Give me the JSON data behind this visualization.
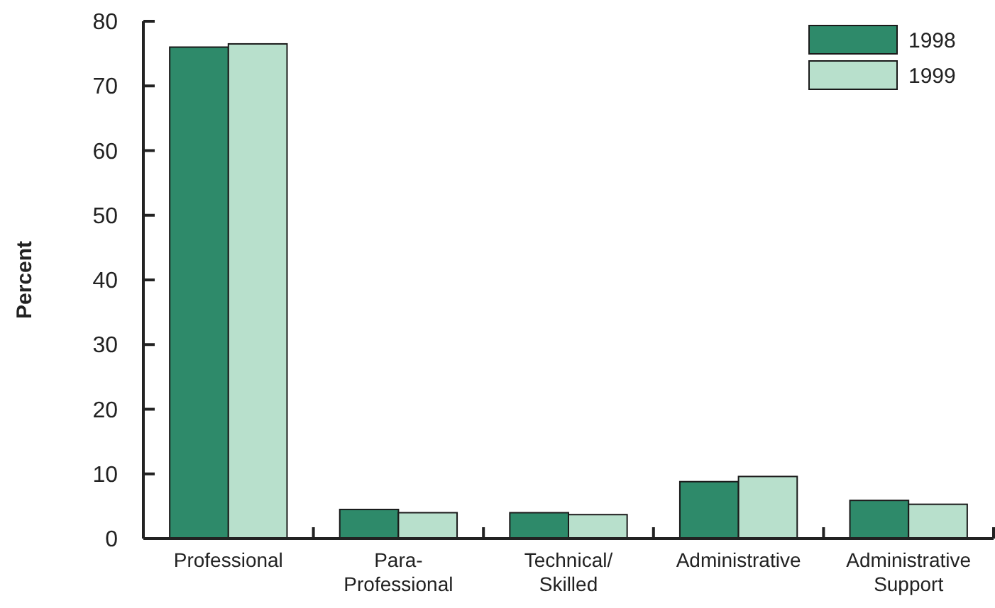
{
  "chart_data": {
    "type": "bar",
    "ylabel": "Percent",
    "categories": [
      "Professional",
      "Para-Professional",
      "Technical/Skilled",
      "Administrative",
      "Administrative Support"
    ],
    "series": [
      {
        "name": "1998",
        "color": "#2e8a6a",
        "values": [
          76,
          4.5,
          4.0,
          8.8,
          5.9
        ]
      },
      {
        "name": "1999",
        "color": "#b8e0cc",
        "values": [
          76.5,
          4.0,
          3.7,
          9.6,
          5.3
        ]
      }
    ],
    "ylim": [
      0,
      80
    ],
    "yticks": [
      0,
      10,
      20,
      30,
      40,
      50,
      60,
      70,
      80
    ],
    "legend": "top right",
    "grid": false
  }
}
